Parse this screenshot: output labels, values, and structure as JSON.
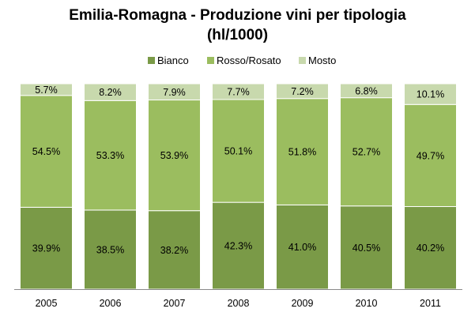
{
  "chart_data": {
    "type": "bar",
    "stacked": true,
    "title_line1": "Emilia-Romagna - Produzione vini per tipologia",
    "title_line2": "(hl/1000)",
    "categories": [
      "2005",
      "2006",
      "2007",
      "2008",
      "2009",
      "2010",
      "2011"
    ],
    "series": [
      {
        "name": "Bianco",
        "color": "#7a9a47",
        "values": [
          39.9,
          38.5,
          38.2,
          42.3,
          41.0,
          40.5,
          40.2
        ],
        "labels": [
          "39.9%",
          "38.5%",
          "38.2%",
          "42.3%",
          "41.0%",
          "40.5%",
          "40.2%"
        ]
      },
      {
        "name": "Rosso/Rosato",
        "color": "#9bbd5f",
        "values": [
          54.5,
          53.3,
          53.9,
          50.1,
          51.8,
          52.7,
          49.7
        ],
        "labels": [
          "54.5%",
          "53.3%",
          "53.9%",
          "50.1%",
          "51.8%",
          "52.7%",
          "49.7%"
        ]
      },
      {
        "name": "Mosto",
        "color": "#c8d9ad",
        "values": [
          5.7,
          8.2,
          7.9,
          7.7,
          7.2,
          6.8,
          10.1
        ],
        "labels": [
          "5.7%",
          "8.2%",
          "7.9%",
          "7.7%",
          "7.2%",
          "6.8%",
          "10.1%"
        ]
      }
    ],
    "legend_position": "top",
    "ylim": [
      0,
      100
    ],
    "grid": false,
    "data_labels": true
  }
}
